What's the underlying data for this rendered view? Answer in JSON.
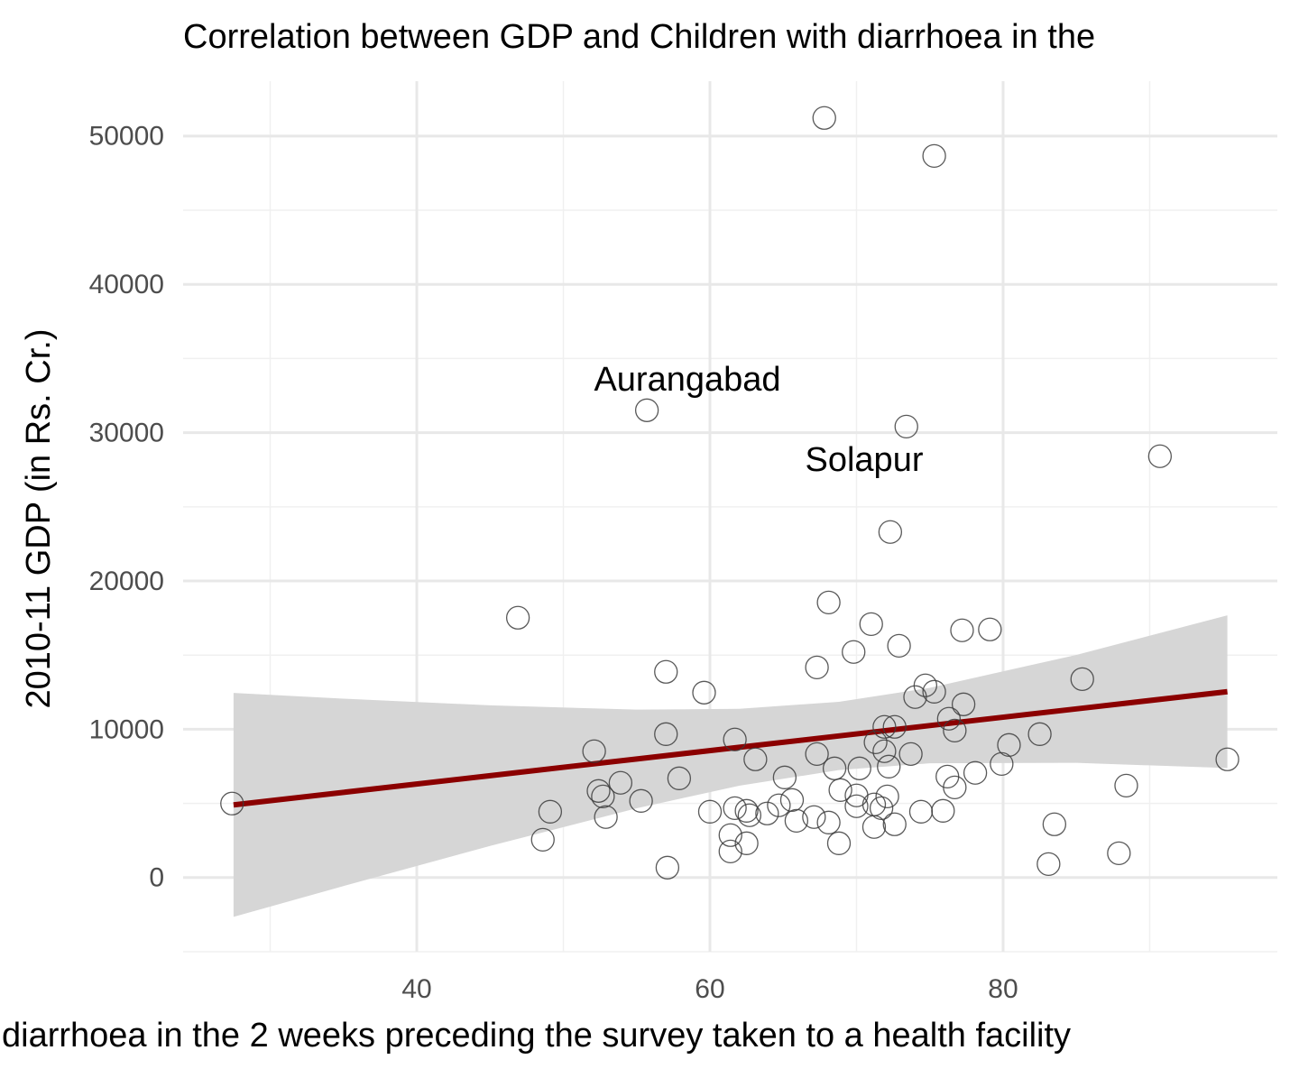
{
  "chart_data": {
    "type": "scatter",
    "title": "Correlation between GDP and Children with diarrhoea in the",
    "x_label": "diarrhoea in the 2 weeks preceding the survey taken to a health facility",
    "y_label": "2010-11 GDP (in Rs. Cr.)",
    "x": [
      27.4,
      67.8,
      75.3,
      55.7,
      73.4,
      90.7,
      72.3,
      68.1,
      46.9,
      71.0,
      77.2,
      79.1,
      69.8,
      72.9,
      67.3,
      57.0,
      85.4,
      74.7,
      75.3,
      59.6,
      74.0,
      77.3,
      76.3,
      71.9,
      72.6,
      76.7,
      57.0,
      82.5,
      61.7,
      71.3,
      80.4,
      71.9,
      52.1,
      67.3,
      73.7,
      63.1,
      72.2,
      79.9,
      68.5,
      70.2,
      78.1,
      57.9,
      76.2,
      65.1,
      53.9,
      52.4,
      76.7,
      68.9,
      70.0,
      72.1,
      52.7,
      65.6,
      55.3,
      71.2,
      61.7,
      64.7,
      70.0,
      71.7,
      62.5,
      63.9,
      60.0,
      49.1,
      74.4,
      75.9,
      62.7,
      52.9,
      65.9,
      67.1,
      68.1,
      71.2,
      72.6,
      83.5,
      61.4,
      48.6,
      62.5,
      68.8,
      61.4,
      87.9,
      88.4,
      95.3,
      57.1,
      83.1
    ],
    "y": [
      4990,
      51220,
      48660,
      31510,
      30410,
      28410,
      23300,
      18550,
      17520,
      17090,
      16670,
      16730,
      15210,
      15630,
      14170,
      13870,
      13380,
      12960,
      12530,
      12470,
      12170,
      11680,
      10710,
      10160,
      10160,
      9910,
      9670,
      9670,
      9310,
      9120,
      8940,
      8520,
      8520,
      8330,
      8330,
      7970,
      7480,
      7660,
      7360,
      7360,
      7060,
      6690,
      6810,
      6750,
      6390,
      5840,
      6080,
      5900,
      5540,
      5470,
      5470,
      5230,
      5170,
      4930,
      4680,
      4870,
      4810,
      4680,
      4500,
      4320,
      4440,
      4440,
      4440,
      4500,
      4200,
      4080,
      3830,
      4080,
      3710,
      3410,
      3590,
      3590,
      2860,
      2550,
      2310,
      2310,
      1760,
      1640,
      6200,
      7970,
      670,
      910
    ],
    "point_color": "#3c3c3c",
    "fit": {
      "x": [
        27.5,
        35,
        45,
        55,
        62,
        68.8,
        75,
        85,
        95.3
      ],
      "y": [
        4900,
        5745,
        6871,
        7997,
        8785,
        9550,
        10249,
        11375,
        12535
      ],
      "lower": [
        -2650,
        -572,
        2130,
        4670,
        6195,
        7248,
        7707,
        7735,
        7385
      ],
      "upper": [
        12450,
        12062,
        11612,
        11324,
        11375,
        11852,
        12791,
        15015,
        17685
      ],
      "color": "#8b0000",
      "band_color": "#d6d6d6"
    },
    "annotations": [
      {
        "text": "Aurangabad"
      },
      {
        "text": "Solapur"
      }
    ],
    "xlim": [
      24.06,
      98.71
    ],
    "ylim": [
      -5000,
      53700
    ],
    "xticks": [
      40,
      60,
      80
    ],
    "yticks": [
      0,
      10000,
      20000,
      30000,
      40000,
      50000
    ],
    "xminor": [
      30,
      50,
      70,
      90
    ],
    "yminor": [
      -5000,
      5000,
      15000,
      25000,
      35000,
      45000
    ],
    "grid": true
  }
}
